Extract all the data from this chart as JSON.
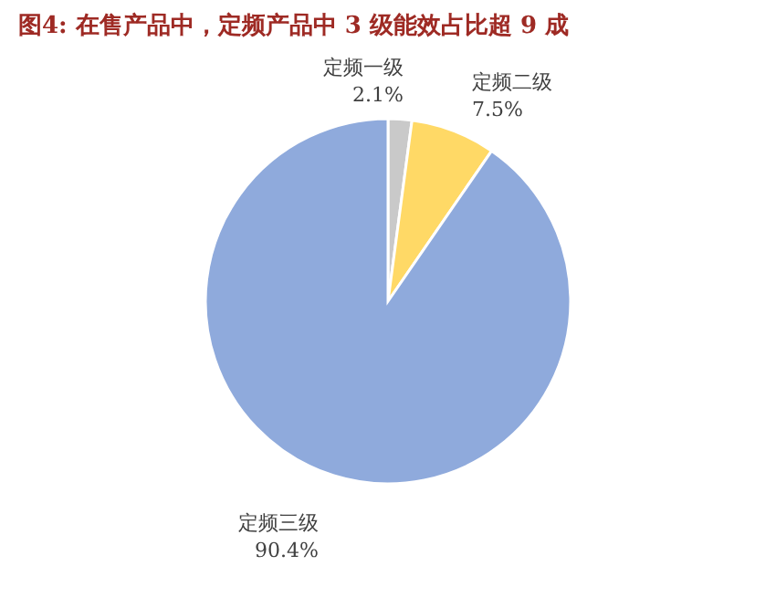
{
  "chart_data": {
    "type": "pie",
    "title": "图4: 在售产品中，定频产品中 3 级能效占比超 9 成",
    "categories": [
      "定频一级",
      "定频二级",
      "定频三级"
    ],
    "values": [
      2.1,
      7.5,
      90.4
    ],
    "value_labels": [
      "2.1%",
      "7.5%",
      "90.4%"
    ],
    "colors": [
      "#c9c9c9",
      "#ffd966",
      "#8faadc"
    ]
  }
}
